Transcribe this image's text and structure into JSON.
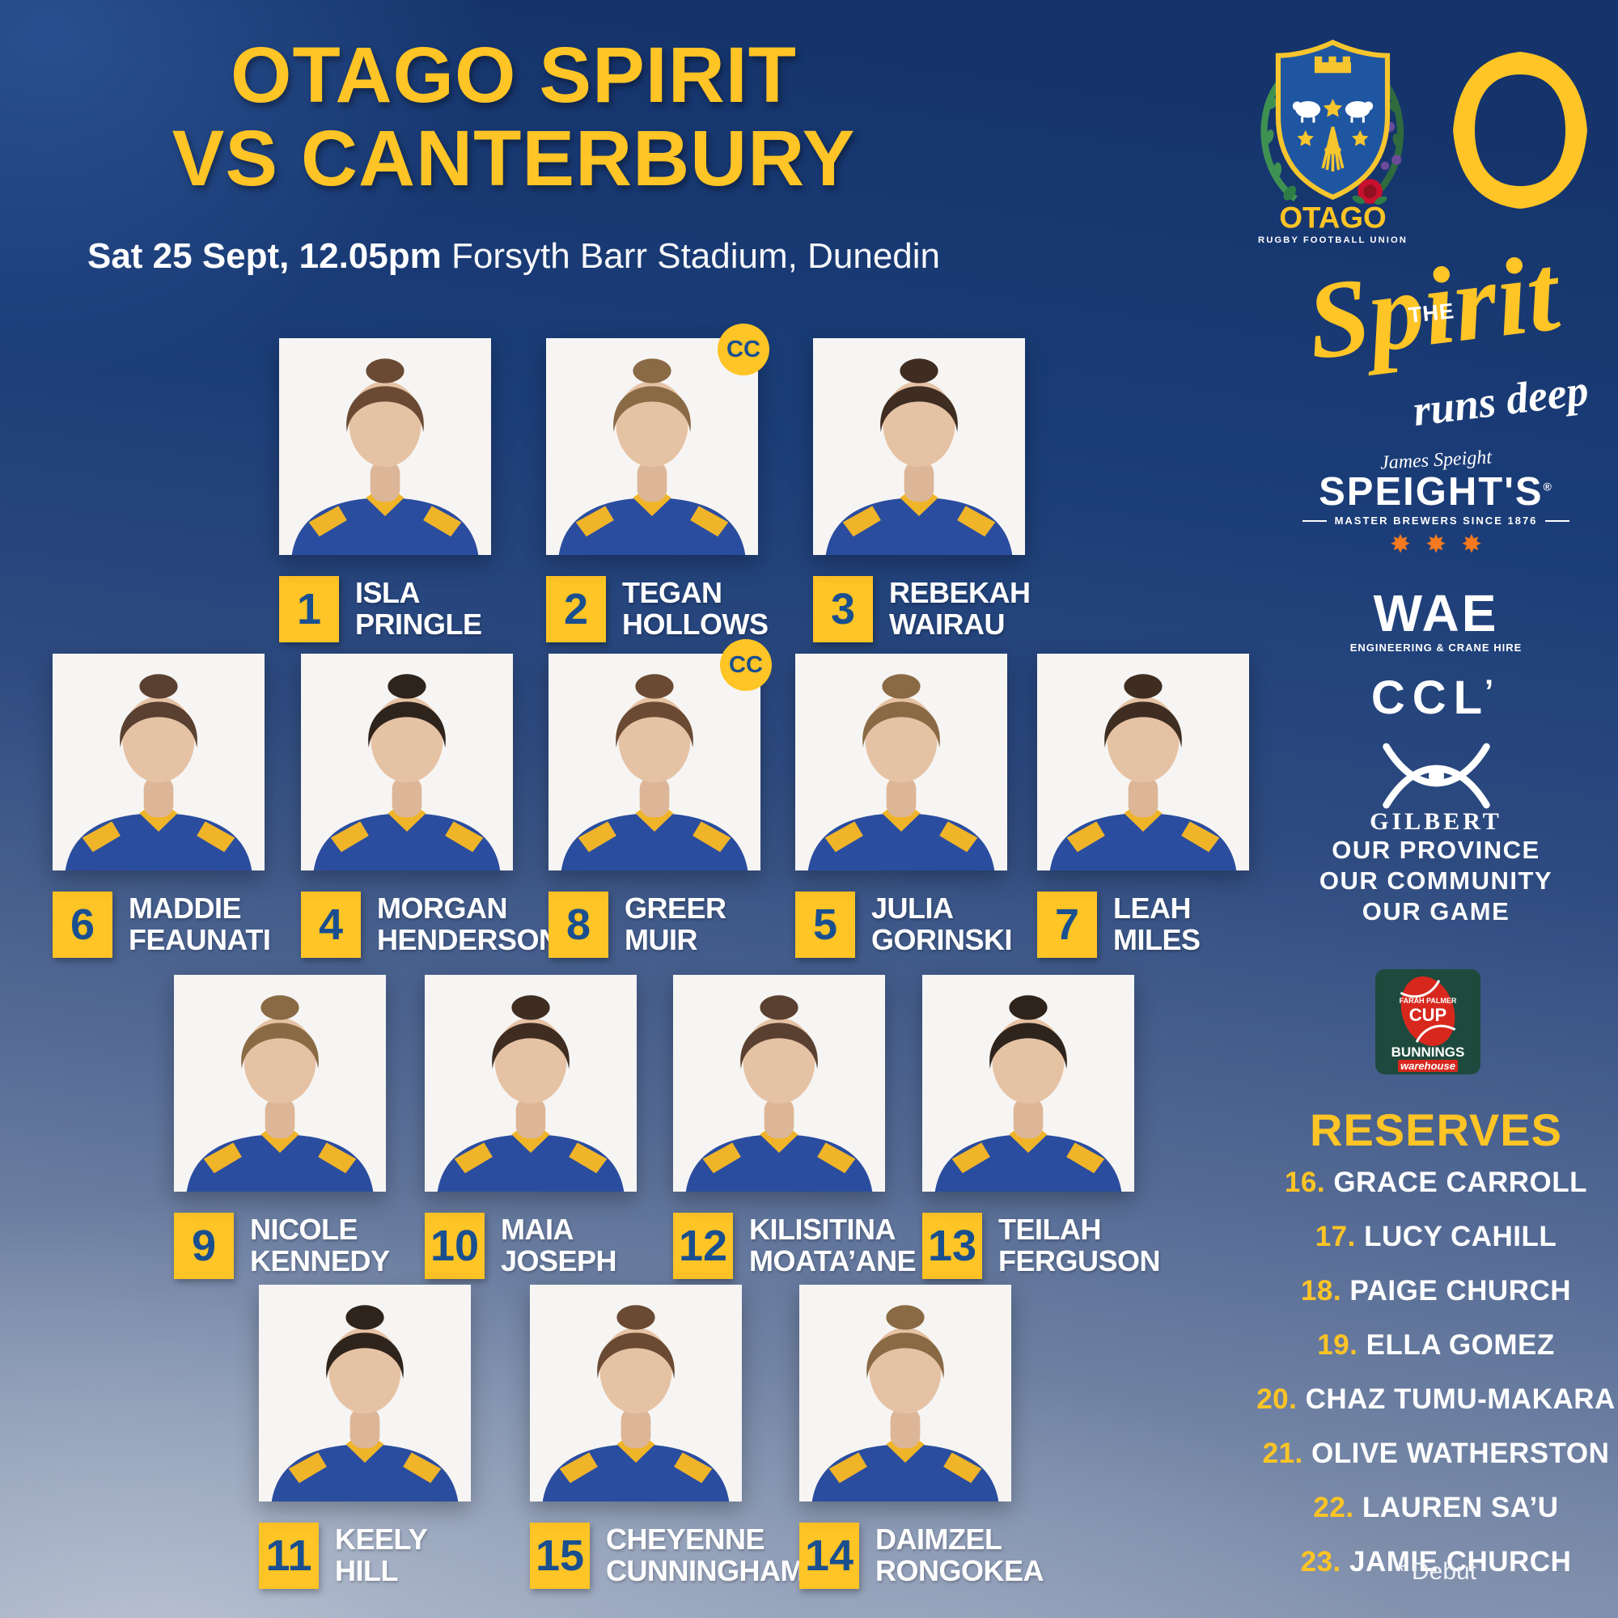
{
  "title": {
    "line1": "OTAGO SPIRIT",
    "line2": "VS CANTERBURY"
  },
  "subtitle": {
    "datetime": "Sat 25 Sept, 12.05pm",
    "venue": "Forsyth Barr Stadium, Dunedin"
  },
  "branding": {
    "crest": {
      "team": "OTAGO",
      "org": "RUGBY FOOTBALL UNION"
    },
    "tagline": {
      "the": "THE",
      "spirit": "Spirit",
      "runs_deep": "runs deep"
    }
  },
  "labels": {
    "cc": "CC"
  },
  "sponsors": {
    "speights": {
      "script": "James Speight",
      "name": "SPEIGHT'S",
      "reg": "®",
      "tag": "MASTER BREWERS SINCE 1876",
      "stars": "✸✸✸"
    },
    "wae": {
      "name": "WAE",
      "tag": "ENGINEERING & CRANE HIRE"
    },
    "ccl": {
      "name": "CCL",
      "mark": "’"
    },
    "gilbert": {
      "name": "GILBERT"
    },
    "motto": [
      "OUR PROVINCE",
      "OUR COMMUNITY",
      "OUR GAME"
    ]
  },
  "competition": {
    "cup_line1": "FARAH PALMER",
    "cup_line2": "CUP",
    "bunnings": "BUNNINGS",
    "warehouse": "warehouse"
  },
  "lineup": {
    "rows": [
      [
        {
          "number": "1",
          "first": "ISLA",
          "last": "PRINGLE",
          "cc": false
        },
        {
          "number": "2",
          "first": "TEGAN",
          "last": "HOLLOWS",
          "cc": true
        },
        {
          "number": "3",
          "first": "REBEKAH",
          "last": "WAIRAU",
          "cc": false
        }
      ],
      [
        {
          "number": "6",
          "first": "MADDIE",
          "last": "FEAUNATI",
          "cc": false
        },
        {
          "number": "4",
          "first": "MORGAN",
          "last": "HENDERSON",
          "cc": false
        },
        {
          "number": "8",
          "first": "GREER",
          "last": "MUIR",
          "cc": true
        },
        {
          "number": "5",
          "first": "JULIA",
          "last": "GORINSKI",
          "cc": false
        },
        {
          "number": "7",
          "first": "LEAH",
          "last": "MILES",
          "cc": false
        }
      ],
      [
        {
          "number": "9",
          "first": "NICOLE",
          "last": "KENNEDY",
          "cc": false
        },
        {
          "number": "10",
          "first": "MAIA",
          "last": "JOSEPH",
          "cc": false
        },
        {
          "number": "12",
          "first": "KILISITINA",
          "last": "MOATA’ANE",
          "cc": false
        },
        {
          "number": "13",
          "first": "TEILAH",
          "last": "FERGUSON",
          "cc": false
        }
      ],
      [
        {
          "number": "11",
          "first": "KEELY",
          "last": "HILL",
          "cc": false
        },
        {
          "number": "15",
          "first": "CHEYENNE",
          "last": "CUNNINGHAM",
          "cc": false
        },
        {
          "number": "14",
          "first": "DAIMZEL",
          "last": "RONGOKEA",
          "cc": false
        }
      ]
    ]
  },
  "reserves": {
    "heading": "RESERVES",
    "players": [
      {
        "number": "16.",
        "name": "GRACE CARROLL"
      },
      {
        "number": "17.",
        "name": "LUCY CAHILL"
      },
      {
        "number": "18.",
        "name": "PAIGE CHURCH"
      },
      {
        "number": "19.",
        "name": "ELLA GOMEZ"
      },
      {
        "number": "20.",
        "name": "CHAZ TUMU-MAKARA"
      },
      {
        "number": "21.",
        "name": "OLIVE WATHERSTON"
      },
      {
        "number": "22.",
        "name": "LAUREN SA’U"
      },
      {
        "number": "23.",
        "name": "JAMIE CHURCH"
      }
    ],
    "footnote": "* Debut"
  },
  "colors": {
    "accent_yellow": "#FFC425",
    "number_blue": "#1A4F8F",
    "background_navy": "#16366E",
    "star_orange": "#F4791F",
    "fpc_green": "#1D4A3C",
    "fpc_red": "#D8281E",
    "white": "#FFFFFF"
  }
}
